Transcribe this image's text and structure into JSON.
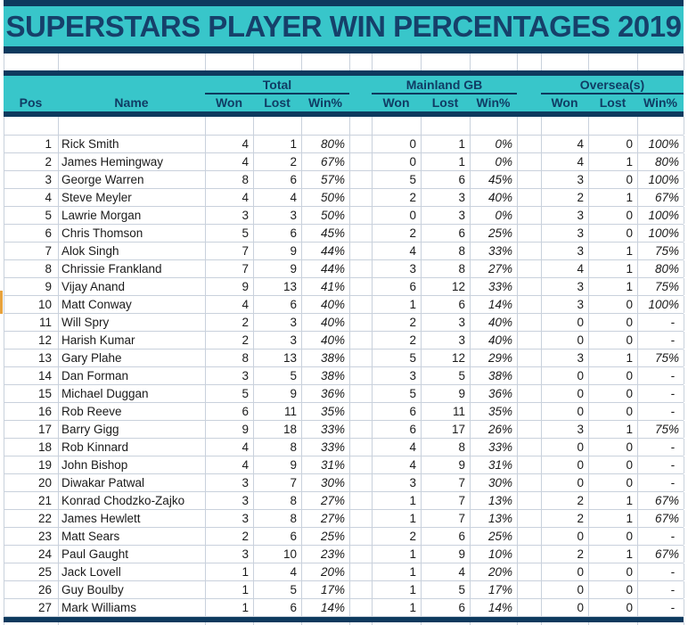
{
  "title": "SUPERSTARS PLAYER WIN PERCENTAGES 2019",
  "colors": {
    "teal": "#38c6ca",
    "navy": "#0e3a5e",
    "title_text": "#16406a",
    "header_text": "#103c64",
    "grid": "#c9d1dc",
    "data_text": "#1a1a1a",
    "marker_orange": "#e8a33d",
    "background": "#ffffff"
  },
  "table": {
    "pos_header": "Pos",
    "name_header": "Name",
    "groups": [
      {
        "label": "Total"
      },
      {
        "label": "Mainland GB"
      },
      {
        "label": "Oversea(s)"
      }
    ],
    "sub_headers": [
      "Won",
      "Lost",
      "Win%"
    ],
    "rows": [
      {
        "pos": "1",
        "name": "Rick Smith",
        "total": [
          "4",
          "1",
          "80%"
        ],
        "gb": [
          "0",
          "1",
          "0%"
        ],
        "os": [
          "4",
          "0",
          "100%"
        ]
      },
      {
        "pos": "2",
        "name": "James Hemingway",
        "total": [
          "4",
          "2",
          "67%"
        ],
        "gb": [
          "0",
          "1",
          "0%"
        ],
        "os": [
          "4",
          "1",
          "80%"
        ]
      },
      {
        "pos": "3",
        "name": "George Warren",
        "total": [
          "8",
          "6",
          "57%"
        ],
        "gb": [
          "5",
          "6",
          "45%"
        ],
        "os": [
          "3",
          "0",
          "100%"
        ]
      },
      {
        "pos": "4",
        "name": "Steve Meyler",
        "total": [
          "4",
          "4",
          "50%"
        ],
        "gb": [
          "2",
          "3",
          "40%"
        ],
        "os": [
          "2",
          "1",
          "67%"
        ]
      },
      {
        "pos": "5",
        "name": "Lawrie Morgan",
        "total": [
          "3",
          "3",
          "50%"
        ],
        "gb": [
          "0",
          "3",
          "0%"
        ],
        "os": [
          "3",
          "0",
          "100%"
        ]
      },
      {
        "pos": "6",
        "name": "Chris Thomson",
        "total": [
          "5",
          "6",
          "45%"
        ],
        "gb": [
          "2",
          "6",
          "25%"
        ],
        "os": [
          "3",
          "0",
          "100%"
        ]
      },
      {
        "pos": "7",
        "name": "Alok Singh",
        "total": [
          "7",
          "9",
          "44%"
        ],
        "gb": [
          "4",
          "8",
          "33%"
        ],
        "os": [
          "3",
          "1",
          "75%"
        ]
      },
      {
        "pos": "8",
        "name": "Chrissie Frankland",
        "total": [
          "7",
          "9",
          "44%"
        ],
        "gb": [
          "3",
          "8",
          "27%"
        ],
        "os": [
          "4",
          "1",
          "80%"
        ]
      },
      {
        "pos": "9",
        "name": "Vijay Anand",
        "total": [
          "9",
          "13",
          "41%"
        ],
        "gb": [
          "6",
          "12",
          "33%"
        ],
        "os": [
          "3",
          "1",
          "75%"
        ]
      },
      {
        "pos": "10",
        "name": "Matt Conway",
        "total": [
          "4",
          "6",
          "40%"
        ],
        "gb": [
          "1",
          "6",
          "14%"
        ],
        "os": [
          "3",
          "0",
          "100%"
        ]
      },
      {
        "pos": "11",
        "name": "Will Spry",
        "total": [
          "2",
          "3",
          "40%"
        ],
        "gb": [
          "2",
          "3",
          "40%"
        ],
        "os": [
          "0",
          "0",
          "-"
        ]
      },
      {
        "pos": "12",
        "name": "Harish Kumar",
        "total": [
          "2",
          "3",
          "40%"
        ],
        "gb": [
          "2",
          "3",
          "40%"
        ],
        "os": [
          "0",
          "0",
          "-"
        ]
      },
      {
        "pos": "13",
        "name": "Gary Plahe",
        "total": [
          "8",
          "13",
          "38%"
        ],
        "gb": [
          "5",
          "12",
          "29%"
        ],
        "os": [
          "3",
          "1",
          "75%"
        ]
      },
      {
        "pos": "14",
        "name": "Dan Forman",
        "total": [
          "3",
          "5",
          "38%"
        ],
        "gb": [
          "3",
          "5",
          "38%"
        ],
        "os": [
          "0",
          "0",
          "-"
        ]
      },
      {
        "pos": "15",
        "name": "Michael Duggan",
        "total": [
          "5",
          "9",
          "36%"
        ],
        "gb": [
          "5",
          "9",
          "36%"
        ],
        "os": [
          "0",
          "0",
          "-"
        ]
      },
      {
        "pos": "16",
        "name": "Rob Reeve",
        "total": [
          "6",
          "11",
          "35%"
        ],
        "gb": [
          "6",
          "11",
          "35%"
        ],
        "os": [
          "0",
          "0",
          "-"
        ]
      },
      {
        "pos": "17",
        "name": "Barry Gigg",
        "total": [
          "9",
          "18",
          "33%"
        ],
        "gb": [
          "6",
          "17",
          "26%"
        ],
        "os": [
          "3",
          "1",
          "75%"
        ]
      },
      {
        "pos": "18",
        "name": "Rob Kinnard",
        "total": [
          "4",
          "8",
          "33%"
        ],
        "gb": [
          "4",
          "8",
          "33%"
        ],
        "os": [
          "0",
          "0",
          "-"
        ]
      },
      {
        "pos": "19",
        "name": "John Bishop",
        "total": [
          "4",
          "9",
          "31%"
        ],
        "gb": [
          "4",
          "9",
          "31%"
        ],
        "os": [
          "0",
          "0",
          "-"
        ]
      },
      {
        "pos": "20",
        "name": "Diwakar Patwal",
        "total": [
          "3",
          "7",
          "30%"
        ],
        "gb": [
          "3",
          "7",
          "30%"
        ],
        "os": [
          "0",
          "0",
          "-"
        ]
      },
      {
        "pos": "21",
        "name": "Konrad Chodzko-Zajko",
        "total": [
          "3",
          "8",
          "27%"
        ],
        "gb": [
          "1",
          "7",
          "13%"
        ],
        "os": [
          "2",
          "1",
          "67%"
        ]
      },
      {
        "pos": "22",
        "name": "James Hewlett",
        "total": [
          "3",
          "8",
          "27%"
        ],
        "gb": [
          "1",
          "7",
          "13%"
        ],
        "os": [
          "2",
          "1",
          "67%"
        ]
      },
      {
        "pos": "23",
        "name": "Matt Sears",
        "total": [
          "2",
          "6",
          "25%"
        ],
        "gb": [
          "2",
          "6",
          "25%"
        ],
        "os": [
          "0",
          "0",
          "-"
        ]
      },
      {
        "pos": "24",
        "name": "Paul Gaught",
        "total": [
          "3",
          "10",
          "23%"
        ],
        "gb": [
          "1",
          "9",
          "10%"
        ],
        "os": [
          "2",
          "1",
          "67%"
        ]
      },
      {
        "pos": "25",
        "name": "Jack Lovell",
        "total": [
          "1",
          "4",
          "20%"
        ],
        "gb": [
          "1",
          "4",
          "20%"
        ],
        "os": [
          "0",
          "0",
          "-"
        ]
      },
      {
        "pos": "26",
        "name": "Guy Boulby",
        "total": [
          "1",
          "5",
          "17%"
        ],
        "gb": [
          "1",
          "5",
          "17%"
        ],
        "os": [
          "0",
          "0",
          "-"
        ]
      },
      {
        "pos": "27",
        "name": "Mark Williams",
        "total": [
          "1",
          "6",
          "14%"
        ],
        "gb": [
          "1",
          "6",
          "14%"
        ],
        "os": [
          "0",
          "0",
          "-"
        ]
      }
    ]
  }
}
